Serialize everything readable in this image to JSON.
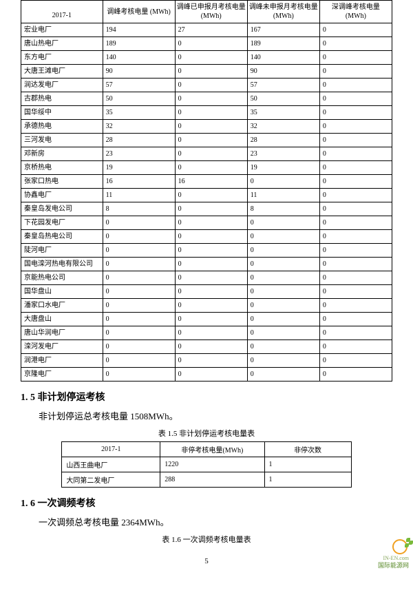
{
  "main_table": {
    "header_period": "2017-1",
    "columns": [
      "调峰考核电量 (MWh)",
      "调峰已申报月考核电量(MWh)",
      "调峰未申报月考核电量(MWh)",
      "深调峰考核电量 (MWh)"
    ],
    "rows": [
      [
        "宏业电厂",
        "194",
        "27",
        "167",
        "0"
      ],
      [
        "唐山热电厂",
        "189",
        "0",
        "189",
        "0"
      ],
      [
        "东方电厂",
        "140",
        "0",
        "140",
        "0"
      ],
      [
        "大唐王滩电厂",
        "90",
        "0",
        "90",
        "0"
      ],
      [
        "润达发电厂",
        "57",
        "0",
        "57",
        "0"
      ],
      [
        "古郡热电",
        "50",
        "0",
        "50",
        "0"
      ],
      [
        "国华绥中",
        "35",
        "0",
        "35",
        "0"
      ],
      [
        "承德热电",
        "32",
        "0",
        "32",
        "0"
      ],
      [
        "三河发电",
        "28",
        "0",
        "28",
        "0"
      ],
      [
        "邓新房",
        "23",
        "0",
        "23",
        "0"
      ],
      [
        "京桥热电",
        "19",
        "0",
        "19",
        "0"
      ],
      [
        "张家口热电",
        "16",
        "16",
        "0",
        "0"
      ],
      [
        "协鑫电厂",
        "11",
        "0",
        "11",
        "0"
      ],
      [
        "秦皇岛发电公司",
        "8",
        "0",
        "8",
        "0"
      ],
      [
        "下花园发电厂",
        "0",
        "0",
        "0",
        "0"
      ],
      [
        "秦皇岛热电公司",
        "0",
        "0",
        "0",
        "0"
      ],
      [
        "陡河电厂",
        "0",
        "0",
        "0",
        "0"
      ],
      [
        "国电滦河热电有限公司",
        "0",
        "0",
        "0",
        "0"
      ],
      [
        "京能热电公司",
        "0",
        "0",
        "0",
        "0"
      ],
      [
        "国华盘山",
        "0",
        "0",
        "0",
        "0"
      ],
      [
        "潘家口水电厂",
        "0",
        "0",
        "0",
        "0"
      ],
      [
        "大唐盘山",
        "0",
        "0",
        "0",
        "0"
      ],
      [
        "唐山华润电厂",
        "0",
        "0",
        "0",
        "0"
      ],
      [
        "滦河发电厂",
        "0",
        "0",
        "0",
        "0"
      ],
      [
        "润港电厂",
        "0",
        "0",
        "0",
        "0"
      ],
      [
        "京隆电厂",
        "0",
        "0",
        "0",
        "0"
      ]
    ]
  },
  "section_1_5": {
    "heading": "1. 5 非计划停运考核",
    "text": "非计划停运总考核电量 1508MWh。",
    "caption": "表 1.5  非计划停运考核电量表",
    "table": {
      "header_period": "2017-1",
      "columns": [
        "非停考核电量(MWh)",
        "非停次数"
      ],
      "rows": [
        [
          "山西王曲电厂",
          "1220",
          "1"
        ],
        [
          "大同第二发电厂",
          "288",
          "1"
        ]
      ]
    }
  },
  "section_1_6": {
    "heading": "1. 6 一次调频考核",
    "text": "一次调频总考核电量 2364MWh。",
    "caption": "表 1.6  一次调频考核电量表"
  },
  "page_number": "5",
  "watermark": {
    "en": "IN-EN.com",
    "cn": "国际能源网"
  }
}
